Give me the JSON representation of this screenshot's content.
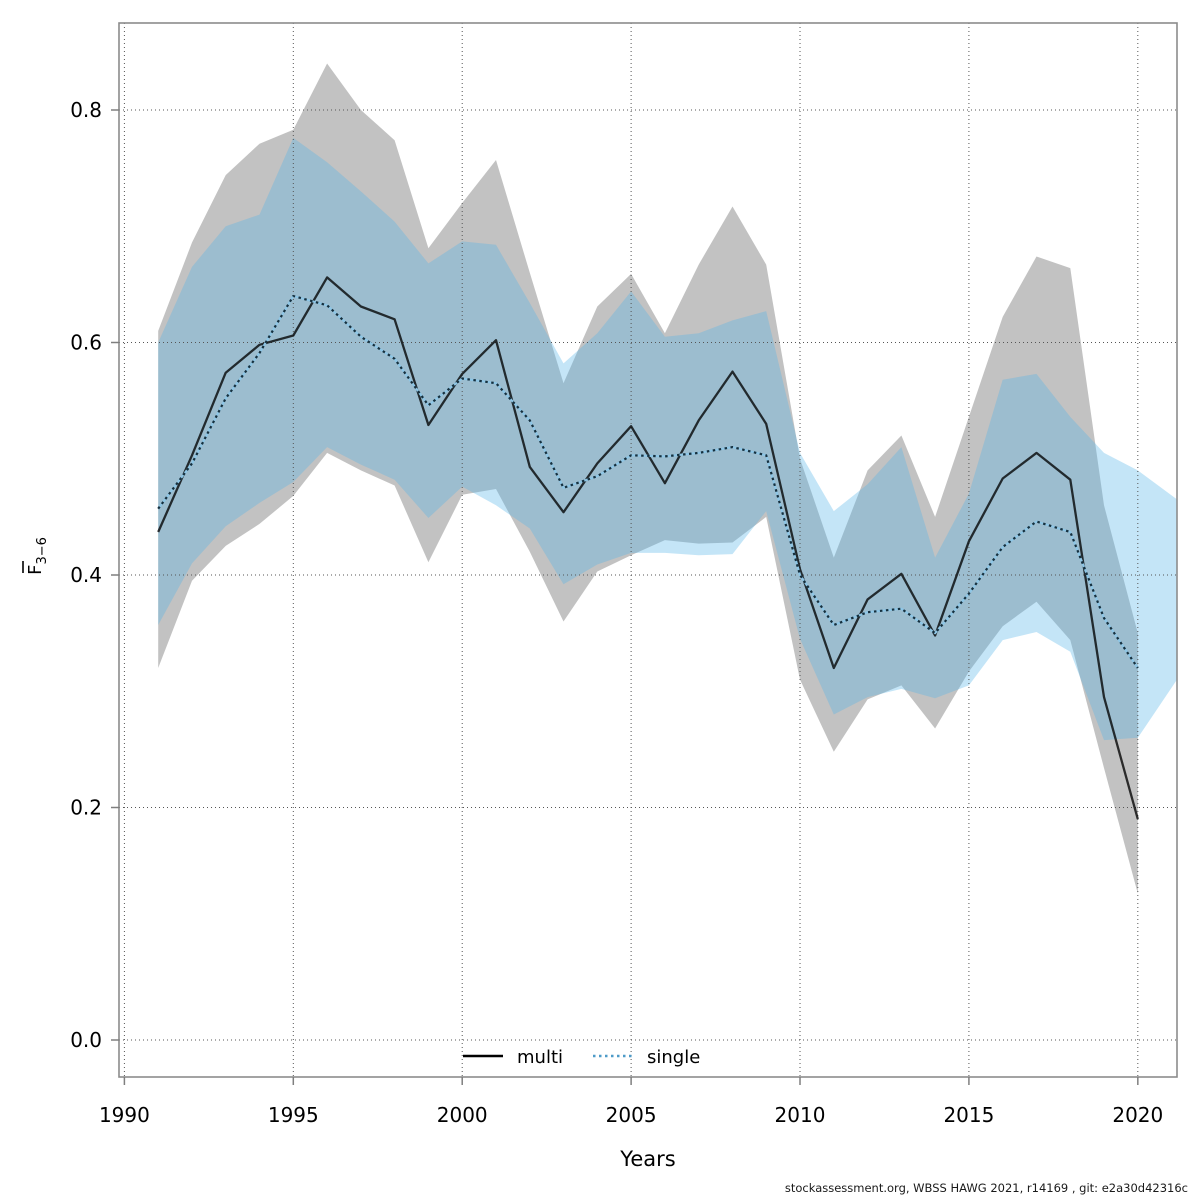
{
  "chart_data": {
    "type": "line",
    "title": "",
    "xlabel": "Years",
    "ylabel": "F3-6 (F-bar, ages 3-6)",
    "ylabel_main": "F",
    "ylabel_sub": "3−6",
    "footer": "stockassessment.org, WBSS HAWG 2021, r14169 , git: e2a30d42316c",
    "grid": true,
    "legend_position": "bottom-center",
    "xlim": [
      1989.84,
      2021.16
    ],
    "ylim": [
      -0.032,
      0.875
    ],
    "xticks": [
      1990,
      1995,
      2000,
      2005,
      2010,
      2015,
      2020
    ],
    "yticks": [
      0.0,
      0.2,
      0.4,
      0.6,
      0.8
    ],
    "ytick_labels": [
      "0.0",
      "0.2",
      "0.4",
      "0.6",
      "0.8"
    ],
    "x": [
      1991,
      1992,
      1993,
      1994,
      1995,
      1996,
      1997,
      1998,
      1999,
      2000,
      2001,
      2002,
      2003,
      2004,
      2005,
      2006,
      2007,
      2008,
      2009,
      2010,
      2011,
      2012,
      2013,
      2014,
      2015,
      2016,
      2017,
      2018,
      2019,
      2020
    ],
    "series": [
      {
        "name": "multi",
        "line_style": "solid",
        "line_color": "#000000",
        "band_fill": "rgba(110,110,110,0.42)",
        "values": [
          0.437,
          0.503,
          0.574,
          0.598,
          0.606,
          0.656,
          0.631,
          0.62,
          0.529,
          0.573,
          0.602,
          0.493,
          0.454,
          0.496,
          0.528,
          0.479,
          0.533,
          0.575,
          0.53,
          0.405,
          0.32,
          0.379,
          0.401,
          0.348,
          0.429,
          0.483,
          0.505,
          0.482,
          0.295,
          0.19
        ],
        "band_upper": [
          0.61,
          0.686,
          0.744,
          0.771,
          0.783,
          0.84,
          0.8,
          0.774,
          0.681,
          0.72,
          0.757,
          0.66,
          0.565,
          0.631,
          0.659,
          0.608,
          0.667,
          0.717,
          0.667,
          0.5,
          0.415,
          0.49,
          0.52,
          0.45,
          0.536,
          0.622,
          0.674,
          0.664,
          0.46,
          0.35
        ],
        "band_lower": [
          0.32,
          0.395,
          0.425,
          0.444,
          0.468,
          0.505,
          0.49,
          0.477,
          0.411,
          0.469,
          0.474,
          0.42,
          0.36,
          0.403,
          0.417,
          0.43,
          0.427,
          0.428,
          0.45,
          0.31,
          0.248,
          0.293,
          0.305,
          0.268,
          0.317,
          0.356,
          0.377,
          0.344,
          0.234,
          0.126
        ]
      },
      {
        "name": "single",
        "line_style": "dotted",
        "line_color": "#16303e",
        "line_under_color": "#8ec6e6",
        "legend_line_color": "#4e9bc8",
        "band_fill": "rgba(86,180,233,0.35)",
        "values": [
          0.457,
          0.496,
          0.552,
          0.591,
          0.64,
          0.632,
          0.605,
          0.586,
          0.546,
          0.569,
          0.565,
          0.533,
          0.475,
          0.485,
          0.503,
          0.502,
          0.505,
          0.51,
          0.503,
          0.4,
          0.357,
          0.368,
          0.371,
          0.35,
          0.384,
          0.424,
          0.446,
          0.437,
          0.363,
          0.32
        ],
        "band_upper": [
          0.6,
          0.665,
          0.7,
          0.71,
          0.776,
          0.755,
          0.73,
          0.704,
          0.668,
          0.687,
          0.684,
          0.634,
          0.582,
          0.608,
          0.644,
          0.605,
          0.608,
          0.619,
          0.627,
          0.505,
          0.455,
          0.478,
          0.51,
          0.415,
          0.47,
          0.568,
          0.573,
          0.536,
          0.505,
          0.49
        ],
        "band_lower": [
          0.357,
          0.41,
          0.442,
          0.462,
          0.48,
          0.51,
          0.495,
          0.482,
          0.449,
          0.476,
          0.46,
          0.44,
          0.392,
          0.409,
          0.419,
          0.419,
          0.417,
          0.418,
          0.455,
          0.345,
          0.28,
          0.295,
          0.302,
          0.294,
          0.305,
          0.344,
          0.351,
          0.334,
          0.258,
          0.26
        ],
        "band_extension": {
          "x": 2021.16,
          "upper": 0.465,
          "lower": 0.31
        }
      }
    ],
    "legend": [
      {
        "label": "multi"
      },
      {
        "label": "single"
      }
    ]
  },
  "style": {
    "plot_border_color": "#8c8c8c",
    "grid_color": "#555555",
    "tick_color": "#7f7f7f",
    "text_color": "#000000",
    "footer_color": "#1a1a1a"
  }
}
